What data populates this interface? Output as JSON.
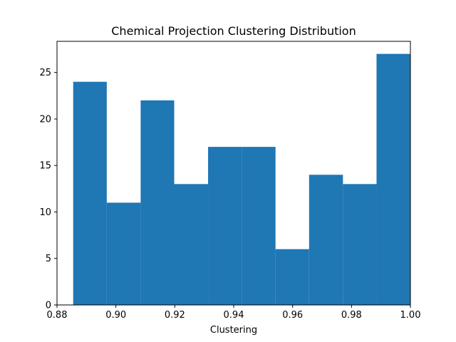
{
  "chart_data": {
    "type": "bar",
    "title": "Chemical Projection Clustering Distribution",
    "xlabel": "Clustering",
    "ylabel": "",
    "xlim": [
      0.88,
      1.0
    ],
    "ylim": [
      0,
      28.35
    ],
    "bar_color": "#1f77b4",
    "bins": [
      {
        "start": 0.8855,
        "end": 0.8969,
        "count": 24
      },
      {
        "start": 0.8969,
        "end": 0.9084,
        "count": 11
      },
      {
        "start": 0.9084,
        "end": 0.9198,
        "count": 22
      },
      {
        "start": 0.9198,
        "end": 0.9313,
        "count": 13
      },
      {
        "start": 0.9313,
        "end": 0.9427,
        "count": 17
      },
      {
        "start": 0.9427,
        "end": 0.9542,
        "count": 17
      },
      {
        "start": 0.9542,
        "end": 0.9656,
        "count": 6
      },
      {
        "start": 0.9656,
        "end": 0.9771,
        "count": 14
      },
      {
        "start": 0.9771,
        "end": 0.9885,
        "count": 13
      },
      {
        "start": 0.9885,
        "end": 1.0,
        "count": 27
      }
    ],
    "x_ticks": [
      {
        "value": 0.88,
        "label": "0.88"
      },
      {
        "value": 0.9,
        "label": "0.90"
      },
      {
        "value": 0.92,
        "label": "0.92"
      },
      {
        "value": 0.94,
        "label": "0.94"
      },
      {
        "value": 0.96,
        "label": "0.96"
      },
      {
        "value": 0.98,
        "label": "0.98"
      },
      {
        "value": 1.0,
        "label": "1.00"
      }
    ],
    "y_ticks": [
      {
        "value": 0,
        "label": "0"
      },
      {
        "value": 5,
        "label": "5"
      },
      {
        "value": 10,
        "label": "10"
      },
      {
        "value": 15,
        "label": "15"
      },
      {
        "value": 20,
        "label": "20"
      },
      {
        "value": 25,
        "label": "25"
      }
    ],
    "grid": false,
    "legend": "none"
  }
}
